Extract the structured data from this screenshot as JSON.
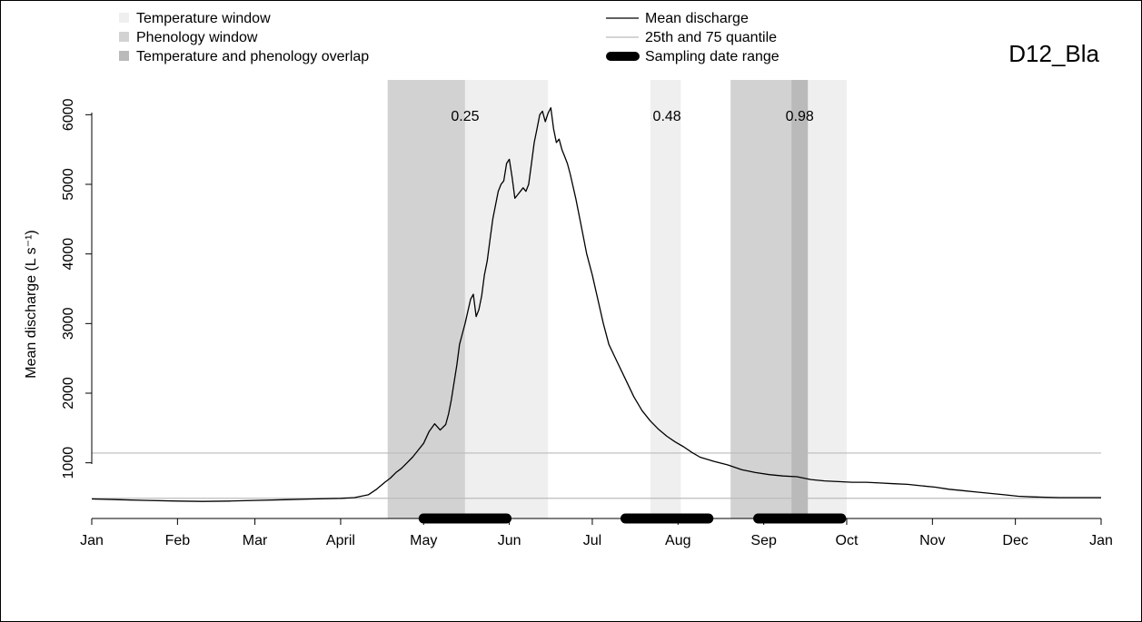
{
  "chart_data": {
    "type": "line",
    "title": "D12_Bla",
    "ylabel": "Mean discharge (L s⁻¹)",
    "xlabel": "",
    "x_ticks": [
      {
        "label": "Jan",
        "day": 0
      },
      {
        "label": "Feb",
        "day": 31
      },
      {
        "label": "Mar",
        "day": 59
      },
      {
        "label": "April",
        "day": 90
      },
      {
        "label": "May",
        "day": 120
      },
      {
        "label": "Jun",
        "day": 151
      },
      {
        "label": "Jul",
        "day": 181
      },
      {
        "label": "Aug",
        "day": 212
      },
      {
        "label": "Sep",
        "day": 243
      },
      {
        "label": "Oct",
        "day": 273
      },
      {
        "label": "Nov",
        "day": 304
      },
      {
        "label": "Dec",
        "day": 334
      },
      {
        "label": "Jan",
        "day": 365
      }
    ],
    "xlim_days": [
      0,
      365
    ],
    "y_ticks": [
      1000,
      2000,
      3000,
      4000,
      5000,
      6000
    ],
    "ylim": [
      200,
      6500
    ],
    "legend_left": [
      {
        "label": "Temperature window",
        "color": "#efefef"
      },
      {
        "label": "Phenology window",
        "color": "#d2d2d2"
      },
      {
        "label": "Temperature and phenology overlap",
        "color": "#bababa"
      }
    ],
    "legend_right": [
      {
        "label": "Mean discharge",
        "color": "#000000",
        "style": "line"
      },
      {
        "label": "25th and 75 quantile",
        "color": "#bbbbbb",
        "style": "line"
      },
      {
        "label": "Sampling date range",
        "color": "#000000",
        "style": "thick"
      }
    ],
    "shaded_windows": [
      {
        "kind": "phenology",
        "start_day": 107,
        "end_day": 135,
        "color": "#d2d2d2"
      },
      {
        "kind": "temperature",
        "start_day": 135,
        "end_day": 165,
        "color": "#efefef"
      },
      {
        "kind": "temperature",
        "start_day": 202,
        "end_day": 213,
        "color": "#efefef"
      },
      {
        "kind": "phenology",
        "start_day": 231,
        "end_day": 253,
        "color": "#d2d2d2"
      },
      {
        "kind": "overlap",
        "start_day": 253,
        "end_day": 259,
        "color": "#bababa"
      },
      {
        "kind": "temperature",
        "start_day": 259,
        "end_day": 273,
        "color": "#efefef"
      }
    ],
    "window_annotations": [
      {
        "text": "0.25",
        "day": 135
      },
      {
        "text": "0.48",
        "day": 208
      },
      {
        "text": "0.98",
        "day": 256
      }
    ],
    "quantile_lines": {
      "q25": 490,
      "q75": 1140
    },
    "sampling_ranges": [
      {
        "start_day": 120,
        "end_day": 150
      },
      {
        "start_day": 193,
        "end_day": 223
      },
      {
        "start_day": 241,
        "end_day": 271
      }
    ],
    "mean_discharge": {
      "x_day": [
        0,
        10,
        20,
        31,
        40,
        50,
        59,
        70,
        80,
        90,
        95,
        100,
        103,
        106,
        108,
        110,
        112,
        114,
        116,
        118,
        120,
        122,
        124,
        126,
        128,
        129,
        130,
        132,
        133,
        135,
        137,
        138,
        139,
        140,
        141,
        142,
        143,
        144,
        145,
        146,
        147,
        148,
        149,
        150,
        151,
        152,
        153,
        154,
        155,
        156,
        157,
        158,
        159,
        160,
        161,
        162,
        163,
        164,
        165,
        166,
        167,
        168,
        169,
        170,
        171,
        172,
        173,
        175,
        177,
        179,
        181,
        183,
        185,
        187,
        190,
        193,
        196,
        199,
        202,
        205,
        208,
        211,
        214,
        217,
        220,
        225,
        230,
        235,
        240,
        245,
        250,
        255,
        260,
        265,
        270,
        275,
        280,
        285,
        290,
        295,
        300,
        305,
        310,
        315,
        320,
        325,
        330,
        335,
        340,
        345,
        350,
        355,
        360,
        365
      ],
      "y": [
        480,
        470,
        460,
        450,
        445,
        450,
        460,
        470,
        480,
        490,
        500,
        540,
        620,
        720,
        780,
        860,
        920,
        1000,
        1080,
        1180,
        1280,
        1450,
        1560,
        1470,
        1550,
        1700,
        1900,
        2400,
        2700,
        3000,
        3350,
        3420,
        3100,
        3200,
        3400,
        3700,
        3900,
        4200,
        4500,
        4700,
        4900,
        5000,
        5050,
        5300,
        5360,
        5100,
        4800,
        4850,
        4900,
        4950,
        4900,
        5000,
        5300,
        5600,
        5800,
        6000,
        6050,
        5900,
        6020,
        6100,
        5800,
        5600,
        5650,
        5500,
        5400,
        5300,
        5150,
        4800,
        4400,
        4000,
        3700,
        3350,
        3000,
        2700,
        2450,
        2200,
        1950,
        1750,
        1600,
        1480,
        1380,
        1300,
        1230,
        1150,
        1080,
        1020,
        970,
        900,
        860,
        830,
        810,
        800,
        760,
        740,
        730,
        720,
        720,
        710,
        700,
        690,
        670,
        650,
        620,
        600,
        580,
        560,
        540,
        520,
        510,
        505,
        500,
        500,
        500,
        500
      ]
    }
  }
}
